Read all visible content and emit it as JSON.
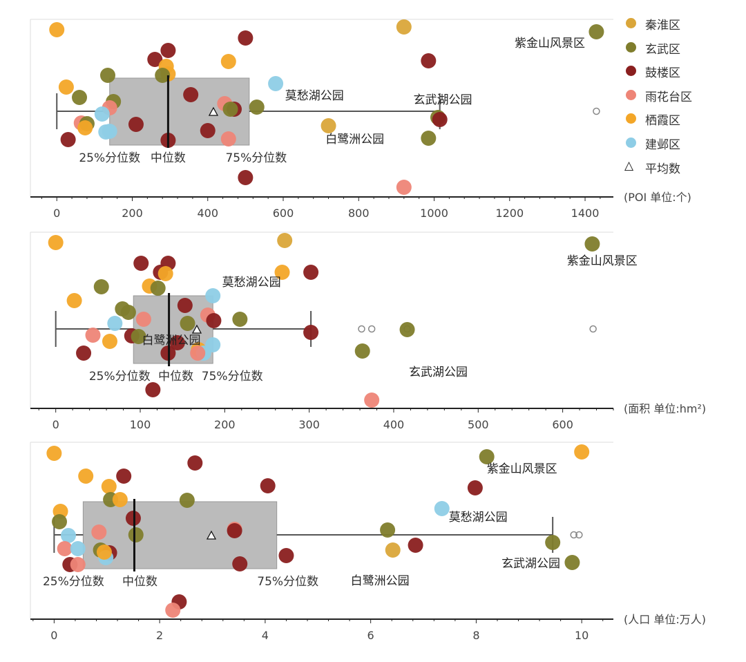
{
  "legend": {
    "items": [
      {
        "label": "秦淮区",
        "color": "#DAA63A"
      },
      {
        "label": "玄武区",
        "color": "#7F7D2C"
      },
      {
        "label": "鼓楼区",
        "color": "#8A1F1F"
      },
      {
        "label": "雨花台区",
        "color": "#EE8577"
      },
      {
        "label": "栖霞区",
        "color": "#F3A628"
      },
      {
        "label": "建邺区",
        "color": "#8ECDE6"
      }
    ],
    "mean_label": "平均数",
    "mean_symbol": "△"
  },
  "chart_data": [
    {
      "type": "scatter",
      "unit_label": "(POI 单位:个)",
      "x_ticks": [
        0,
        200,
        400,
        600,
        800,
        1000,
        1200,
        1400
      ],
      "xlim": [
        -70,
        1475
      ],
      "box": {
        "whisker_low": 0,
        "q1": 140,
        "median": 295,
        "q3": 510,
        "whisker_high": 1015,
        "mean": 415
      },
      "outliers": [
        1430
      ],
      "box_labels": {
        "q1": "25%分位数",
        "median": "中位数",
        "q3": "75%分位数"
      },
      "points": [
        {
          "x": 0,
          "d": 4
        },
        {
          "x": 920,
          "d": 0
        },
        {
          "x": 1430,
          "d": 1
        },
        {
          "x": 500,
          "d": 2
        },
        {
          "x": 295,
          "d": 2
        },
        {
          "x": 260,
          "d": 2
        },
        {
          "x": 455,
          "d": 4
        },
        {
          "x": 290,
          "d": 4
        },
        {
          "x": 985,
          "d": 2
        },
        {
          "x": 135,
          "d": 1
        },
        {
          "x": 295,
          "d": 4
        },
        {
          "x": 280,
          "d": 1
        },
        {
          "x": 580,
          "d": 5
        },
        {
          "x": 25,
          "d": 4
        },
        {
          "x": 60,
          "d": 1
        },
        {
          "x": 355,
          "d": 2
        },
        {
          "x": 150,
          "d": 1
        },
        {
          "x": 445,
          "d": 3
        },
        {
          "x": 140,
          "d": 3
        },
        {
          "x": 120,
          "d": 5
        },
        {
          "x": 470,
          "d": 2
        },
        {
          "x": 530,
          "d": 1
        },
        {
          "x": 460,
          "d": 1
        },
        {
          "x": 1010,
          "d": 1
        },
        {
          "x": 1015,
          "d": 2
        },
        {
          "x": 65,
          "d": 3
        },
        {
          "x": 80,
          "d": 1
        },
        {
          "x": 75,
          "d": 4
        },
        {
          "x": 130,
          "d": 5
        },
        {
          "x": 210,
          "d": 2
        },
        {
          "x": 720,
          "d": 0
        },
        {
          "x": 400,
          "d": 2
        },
        {
          "x": 140,
          "d": 5
        },
        {
          "x": 985,
          "d": 1
        },
        {
          "x": 30,
          "d": 2
        },
        {
          "x": 295,
          "d": 2
        },
        {
          "x": 455,
          "d": 3
        },
        {
          "x": 500,
          "d": 2
        },
        {
          "x": 920,
          "d": 3
        }
      ],
      "annotations": [
        {
          "text": "紫金山风景区",
          "x": 1400,
          "anchor": "end"
        },
        {
          "text": "莫愁湖公园",
          "x": 605,
          "anchor": "start"
        },
        {
          "text": "玄武湖公园",
          "x": 945,
          "anchor": "start"
        },
        {
          "text": "白鹭洲公园",
          "x": 712,
          "anchor": "start"
        }
      ]
    },
    {
      "type": "scatter",
      "unit_label": "(面积 单位:hm²)",
      "x_ticks": [
        0,
        100,
        200,
        300,
        400,
        500,
        600
      ],
      "xlim": [
        -30,
        660
      ],
      "box": {
        "whisker_low": 0,
        "q1": 92,
        "median": 134,
        "q3": 186,
        "whisker_high": 302,
        "mean": 167
      },
      "outliers": [
        362,
        374,
        416,
        636
      ],
      "box_labels": {
        "q1": "25%分位数",
        "median": "中位数",
        "q3": "75%分位数"
      },
      "points": [
        {
          "x": 0,
          "d": 4
        },
        {
          "x": 271,
          "d": 0
        },
        {
          "x": 635,
          "d": 1
        },
        {
          "x": 133,
          "d": 2
        },
        {
          "x": 101,
          "d": 2
        },
        {
          "x": 268,
          "d": 4
        },
        {
          "x": 124,
          "d": 2
        },
        {
          "x": 130,
          "d": 4
        },
        {
          "x": 302,
          "d": 2
        },
        {
          "x": 54,
          "d": 1
        },
        {
          "x": 111,
          "d": 4
        },
        {
          "x": 121,
          "d": 1
        },
        {
          "x": 186,
          "d": 5
        },
        {
          "x": 22,
          "d": 4
        },
        {
          "x": 79,
          "d": 1
        },
        {
          "x": 153,
          "d": 2
        },
        {
          "x": 86,
          "d": 1
        },
        {
          "x": 180,
          "d": 3
        },
        {
          "x": 104,
          "d": 3
        },
        {
          "x": 70,
          "d": 5
        },
        {
          "x": 156,
          "d": 1
        },
        {
          "x": 218,
          "d": 1
        },
        {
          "x": 187,
          "d": 2
        },
        {
          "x": 416,
          "d": 1
        },
        {
          "x": 302,
          "d": 2
        },
        {
          "x": 44,
          "d": 3
        },
        {
          "x": 90,
          "d": 2
        },
        {
          "x": 64,
          "d": 4
        },
        {
          "x": 186,
          "d": 5
        },
        {
          "x": 98,
          "d": 1
        },
        {
          "x": 169,
          "d": 4
        },
        {
          "x": 144,
          "d": 2
        },
        {
          "x": 175,
          "d": 5
        },
        {
          "x": 363,
          "d": 1
        },
        {
          "x": 33,
          "d": 2
        },
        {
          "x": 133,
          "d": 2
        },
        {
          "x": 168,
          "d": 3
        },
        {
          "x": 115,
          "d": 2
        },
        {
          "x": 374,
          "d": 3
        }
      ],
      "annotations": [
        {
          "text": "紫金山风景区",
          "x": 605,
          "anchor": "start"
        },
        {
          "text": "莫愁湖公园",
          "x": 197,
          "anchor": "start"
        },
        {
          "text": "白鹭洲公园",
          "x": 102,
          "anchor": "start"
        },
        {
          "text": "玄武湖公园",
          "x": 418,
          "anchor": "start"
        }
      ]
    },
    {
      "type": "scatter",
      "unit_label": "(人口 单位:万人)",
      "x_ticks": [
        0,
        2,
        4,
        6,
        8,
        10
      ],
      "xlim": [
        -0.45,
        10.6
      ],
      "box": {
        "whisker_low": 0,
        "q1": 0.55,
        "median": 1.52,
        "q3": 4.22,
        "whisker_high": 9.45,
        "mean": 2.98
      },
      "outliers": [
        9.85,
        9.95
      ],
      "box_labels": {
        "q1": "25%分位数",
        "median": "中位数",
        "q3": "75%分位数"
      },
      "points": [
        {
          "x": 0,
          "d": 4
        },
        {
          "x": 10,
          "d": 4
        },
        {
          "x": 8.2,
          "d": 1
        },
        {
          "x": 2.67,
          "d": 2
        },
        {
          "x": 1.32,
          "d": 2
        },
        {
          "x": 0.6,
          "d": 4
        },
        {
          "x": 4.05,
          "d": 2
        },
        {
          "x": 1.04,
          "d": 4
        },
        {
          "x": 7.98,
          "d": 2
        },
        {
          "x": 1.07,
          "d": 1
        },
        {
          "x": 1.25,
          "d": 4
        },
        {
          "x": 2.52,
          "d": 1
        },
        {
          "x": 7.35,
          "d": 5
        },
        {
          "x": 0.12,
          "d": 4
        },
        {
          "x": 0.1,
          "d": 1
        },
        {
          "x": 1.5,
          "d": 2
        },
        {
          "x": 1.55,
          "d": 1
        },
        {
          "x": 3.42,
          "d": 3
        },
        {
          "x": 3.42,
          "d": 2
        },
        {
          "x": 0.85,
          "d": 3
        },
        {
          "x": 0.27,
          "d": 5
        },
        {
          "x": 6.32,
          "d": 1
        },
        {
          "x": 9.45,
          "d": 1
        },
        {
          "x": 0.2,
          "d": 3
        },
        {
          "x": 0.45,
          "d": 5
        },
        {
          "x": 0.88,
          "d": 1
        },
        {
          "x": 1.05,
          "d": 2
        },
        {
          "x": 6.42,
          "d": 0
        },
        {
          "x": 6.85,
          "d": 2
        },
        {
          "x": 9.82,
          "d": 1
        },
        {
          "x": 0.3,
          "d": 2
        },
        {
          "x": 0.45,
          "d": 3
        },
        {
          "x": 0.98,
          "d": 5
        },
        {
          "x": 4.4,
          "d": 2
        },
        {
          "x": 3.52,
          "d": 2
        },
        {
          "x": 2.37,
          "d": 2
        },
        {
          "x": 2.25,
          "d": 3
        },
        {
          "x": 0.95,
          "d": 4
        }
      ],
      "annotations": [
        {
          "text": "紫金山风景区",
          "x": 8.2,
          "anchor": "start"
        },
        {
          "text": "莫愁湖公园",
          "x": 7.48,
          "anchor": "start"
        },
        {
          "text": "白鹭洲公园",
          "x": 5.62,
          "anchor": "start"
        },
        {
          "text": "玄武湖公园",
          "x": 8.48,
          "anchor": "start"
        }
      ]
    }
  ]
}
